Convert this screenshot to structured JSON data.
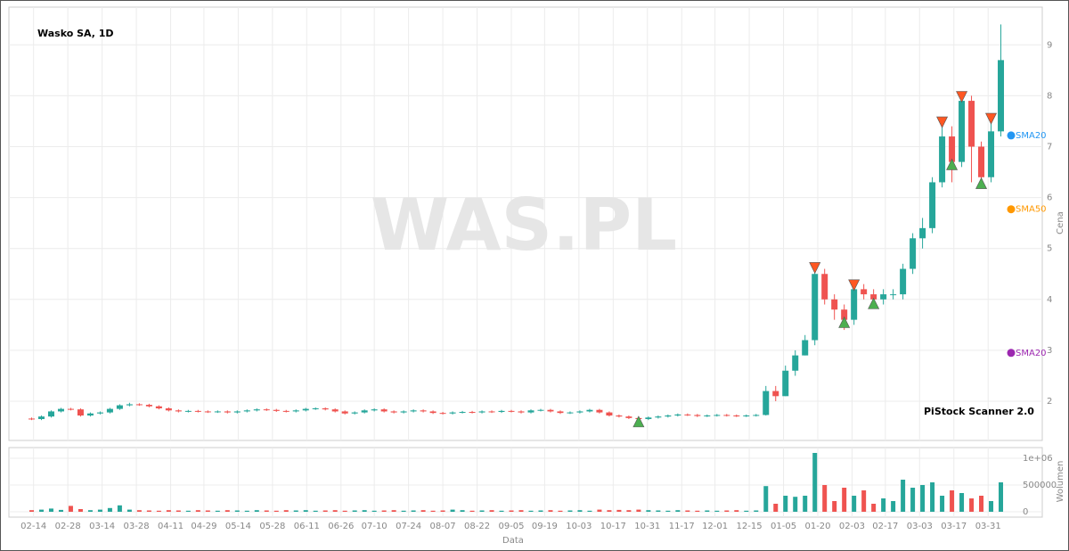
{
  "chart_data": {
    "type": "candlestick",
    "title": "Wasko SA, 1D",
    "watermark": "WAS.PL",
    "footer": "PiStock Scanner 2.0",
    "x_label": "Data",
    "y_label": "Cena",
    "y2_label": "Wolumen",
    "grid": true,
    "up_color": "#26a69a",
    "down_color": "#ef5350",
    "xlim": [
      -0.5,
      100.5
    ],
    "xticks": [
      {
        "value": 0.2,
        "label": "02-14"
      },
      {
        "value": 3.7,
        "label": "02-28"
      },
      {
        "value": 7.2,
        "label": "03-14"
      },
      {
        "value": 10.7,
        "label": "03-28"
      },
      {
        "value": 14.2,
        "label": "04-11"
      },
      {
        "value": 17.6,
        "label": "04-29"
      },
      {
        "value": 21.1,
        "label": "05-14"
      },
      {
        "value": 24.6,
        "label": "05-28"
      },
      {
        "value": 28.1,
        "label": "06-11"
      },
      {
        "value": 31.6,
        "label": "06-26"
      },
      {
        "value": 35.0,
        "label": "07-10"
      },
      {
        "value": 38.5,
        "label": "07-24"
      },
      {
        "value": 42.0,
        "label": "08-07"
      },
      {
        "value": 45.5,
        "label": "08-22"
      },
      {
        "value": 49.0,
        "label": "09-05"
      },
      {
        "value": 52.4,
        "label": "09-19"
      },
      {
        "value": 55.9,
        "label": "10-03"
      },
      {
        "value": 59.4,
        "label": "10-17"
      },
      {
        "value": 62.9,
        "label": "10-31"
      },
      {
        "value": 66.4,
        "label": "11-17"
      },
      {
        "value": 69.8,
        "label": "12-01"
      },
      {
        "value": 73.3,
        "label": "12-15"
      },
      {
        "value": 76.8,
        "label": "01-05"
      },
      {
        "value": 80.3,
        "label": "01-20"
      },
      {
        "value": 83.8,
        "label": "02-03"
      },
      {
        "value": 87.2,
        "label": "02-17"
      },
      {
        "value": 90.7,
        "label": "03-03"
      },
      {
        "value": 94.2,
        "label": "03-17"
      },
      {
        "value": 97.7,
        "label": "03-31"
      }
    ],
    "ylim": [
      1.23,
      9.74
    ],
    "yticks": [
      2,
      3,
      4,
      5,
      6,
      7,
      8,
      9
    ],
    "open": [
      1.66,
      1.65,
      1.7,
      1.8,
      1.85,
      1.84,
      1.72,
      1.76,
      1.78,
      1.85,
      1.92,
      1.94,
      1.93,
      1.9,
      1.86,
      1.82,
      1.8,
      1.81,
      1.8,
      1.79,
      1.8,
      1.78,
      1.8,
      1.82,
      1.84,
      1.83,
      1.81,
      1.8,
      1.82,
      1.85,
      1.86,
      1.84,
      1.8,
      1.76,
      1.78,
      1.82,
      1.84,
      1.8,
      1.78,
      1.8,
      1.82,
      1.8,
      1.77,
      1.76,
      1.78,
      1.79,
      1.78,
      1.8,
      1.79,
      1.81,
      1.8,
      1.78,
      1.82,
      1.83,
      1.8,
      1.77,
      1.78,
      1.8,
      1.83,
      1.78,
      1.72,
      1.7,
      1.67,
      1.65,
      1.68,
      1.7,
      1.72,
      1.74,
      1.73,
      1.71,
      1.72,
      1.73,
      1.72,
      1.71,
      1.72,
      1.73,
      2.2,
      2.1,
      2.6,
      2.9,
      3.2,
      4.5,
      4.0,
      3.8,
      3.6,
      4.2,
      4.1,
      4.0,
      4.1,
      4.1,
      4.6,
      5.2,
      5.4,
      6.3,
      7.2,
      6.7,
      7.9,
      7.0,
      6.4,
      7.3
    ],
    "high": [
      1.68,
      1.72,
      1.82,
      1.87,
      1.87,
      1.86,
      1.78,
      1.8,
      1.87,
      1.94,
      1.97,
      1.96,
      1.95,
      1.92,
      1.88,
      1.84,
      1.83,
      1.83,
      1.82,
      1.82,
      1.82,
      1.82,
      1.84,
      1.86,
      1.86,
      1.85,
      1.83,
      1.84,
      1.87,
      1.88,
      1.88,
      1.86,
      1.82,
      1.8,
      1.84,
      1.86,
      1.86,
      1.82,
      1.82,
      1.84,
      1.84,
      1.82,
      1.79,
      1.8,
      1.81,
      1.81,
      1.82,
      1.82,
      1.83,
      1.83,
      1.82,
      1.84,
      1.85,
      1.85,
      1.82,
      1.8,
      1.82,
      1.85,
      1.85,
      1.8,
      1.74,
      1.72,
      1.69,
      1.7,
      1.72,
      1.74,
      1.76,
      1.76,
      1.75,
      1.74,
      1.75,
      1.75,
      1.74,
      1.74,
      1.75,
      2.3,
      2.3,
      2.7,
      3.0,
      3.3,
      4.6,
      4.6,
      4.1,
      3.9,
      4.3,
      4.3,
      4.2,
      4.2,
      4.2,
      4.7,
      5.3,
      5.6,
      6.4,
      7.5,
      7.4,
      8.0,
      8.0,
      7.1,
      7.6,
      9.4
    ],
    "low": [
      1.63,
      1.63,
      1.68,
      1.78,
      1.82,
      1.7,
      1.7,
      1.74,
      1.76,
      1.83,
      1.9,
      1.91,
      1.88,
      1.84,
      1.8,
      1.78,
      1.78,
      1.78,
      1.77,
      1.77,
      1.76,
      1.76,
      1.78,
      1.8,
      1.81,
      1.79,
      1.78,
      1.78,
      1.8,
      1.83,
      1.82,
      1.78,
      1.74,
      1.74,
      1.76,
      1.8,
      1.78,
      1.76,
      1.76,
      1.78,
      1.78,
      1.75,
      1.74,
      1.74,
      1.76,
      1.76,
      1.76,
      1.77,
      1.77,
      1.78,
      1.76,
      1.76,
      1.8,
      1.78,
      1.75,
      1.75,
      1.76,
      1.78,
      1.76,
      1.7,
      1.68,
      1.65,
      1.63,
      1.63,
      1.66,
      1.68,
      1.7,
      1.71,
      1.69,
      1.69,
      1.7,
      1.7,
      1.69,
      1.69,
      1.7,
      1.72,
      2.0,
      2.1,
      2.5,
      2.9,
      3.1,
      3.9,
      3.6,
      3.4,
      3.5,
      4.0,
      3.9,
      3.9,
      4.0,
      4.0,
      4.5,
      5.0,
      5.3,
      6.2,
      6.3,
      6.6,
      6.3,
      6.2,
      6.3,
      7.2
    ],
    "close": [
      1.65,
      1.7,
      1.8,
      1.85,
      1.84,
      1.72,
      1.76,
      1.78,
      1.85,
      1.92,
      1.94,
      1.93,
      1.9,
      1.86,
      1.82,
      1.8,
      1.81,
      1.8,
      1.79,
      1.8,
      1.78,
      1.8,
      1.82,
      1.84,
      1.83,
      1.81,
      1.8,
      1.82,
      1.85,
      1.86,
      1.84,
      1.8,
      1.76,
      1.78,
      1.82,
      1.84,
      1.8,
      1.78,
      1.8,
      1.82,
      1.8,
      1.77,
      1.76,
      1.78,
      1.79,
      1.78,
      1.8,
      1.79,
      1.81,
      1.8,
      1.78,
      1.82,
      1.83,
      1.8,
      1.77,
      1.78,
      1.8,
      1.83,
      1.78,
      1.72,
      1.7,
      1.67,
      1.65,
      1.68,
      1.7,
      1.72,
      1.74,
      1.73,
      1.71,
      1.72,
      1.73,
      1.72,
      1.71,
      1.72,
      1.73,
      2.2,
      2.1,
      2.6,
      2.9,
      3.2,
      4.5,
      4.0,
      3.8,
      3.6,
      4.2,
      4.1,
      4.0,
      4.1,
      4.1,
      4.6,
      5.2,
      5.4,
      6.3,
      7.2,
      6.7,
      7.9,
      7.0,
      6.4,
      7.3,
      8.7
    ],
    "volume": {
      "ylim": [
        -100000,
        1200000
      ],
      "yticks": [
        0,
        500000,
        {
          "value": 1000000,
          "label": "1e+06"
        }
      ],
      "values": [
        30000,
        40000,
        60000,
        35000,
        110000,
        50000,
        30000,
        40000,
        70000,
        120000,
        40000,
        30000,
        25000,
        20000,
        30000,
        25000,
        20000,
        30000,
        25000,
        20000,
        30000,
        25000,
        20000,
        30000,
        25000,
        20000,
        30000,
        25000,
        30000,
        20000,
        25000,
        30000,
        20000,
        25000,
        30000,
        20000,
        25000,
        30000,
        20000,
        25000,
        30000,
        20000,
        25000,
        40000,
        30000,
        20000,
        25000,
        30000,
        20000,
        25000,
        30000,
        20000,
        25000,
        30000,
        20000,
        25000,
        30000,
        20000,
        40000,
        30000,
        35000,
        30000,
        40000,
        30000,
        25000,
        20000,
        30000,
        25000,
        20000,
        25000,
        20000,
        25000,
        30000,
        20000,
        25000,
        480000,
        150000,
        300000,
        280000,
        300000,
        1100000,
        500000,
        200000,
        450000,
        300000,
        400000,
        150000,
        250000,
        200000,
        600000,
        450000,
        500000,
        550000,
        300000,
        400000,
        350000,
        250000,
        300000,
        200000,
        550000
      ]
    },
    "up_markers": {
      "color": "#4caf50",
      "x": [
        62,
        83,
        86,
        94,
        97
      ],
      "values": [
        1.6,
        3.55,
        3.92,
        6.65,
        6.28
      ]
    },
    "down_markers": {
      "color": "#ff5722",
      "x": [
        80,
        84,
        93,
        95,
        98
      ],
      "values": [
        4.62,
        4.28,
        7.48,
        7.98,
        7.55
      ]
    },
    "indicators": [
      {
        "name": "SMA20",
        "color": "#2196f3",
        "value": 7.22
      },
      {
        "name": "SMA50",
        "color": "#ff9800",
        "value": 5.77
      },
      {
        "name": "SMA20",
        "color": "#9c27b0",
        "value": 2.95
      }
    ]
  }
}
